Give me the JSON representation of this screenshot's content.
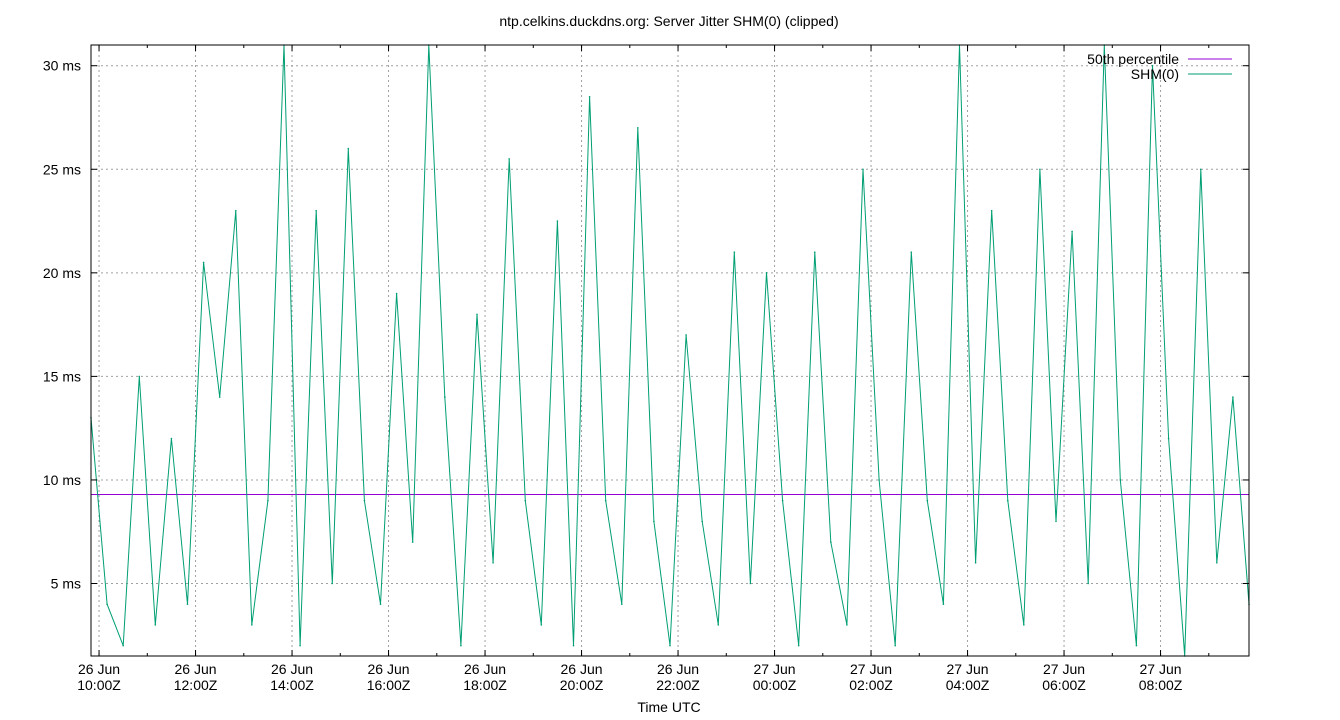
{
  "chart_data": {
    "type": "line",
    "title": "ntp.celkins.duckdns.org: Server Jitter SHM(0) (clipped)",
    "xlabel": "Time UTC",
    "ylabel": "",
    "y_unit": "ms",
    "ylim": [
      1.5,
      31
    ],
    "y_ticks": [
      5,
      10,
      15,
      20,
      25,
      30
    ],
    "y_tick_labels": [
      "5 ms",
      "10 ms",
      "15 ms",
      "20 ms",
      "25 ms",
      "30 ms"
    ],
    "x_range_utc": [
      "2024-06-26T09:50Z",
      "2024-06-27T09:50Z"
    ],
    "x_ticks": [
      {
        "day": "26 Jun",
        "time": "10:00Z",
        "t": "2024-06-26T10:00Z"
      },
      {
        "day": "26 Jun",
        "time": "12:00Z",
        "t": "2024-06-26T12:00Z"
      },
      {
        "day": "26 Jun",
        "time": "14:00Z",
        "t": "2024-06-26T14:00Z"
      },
      {
        "day": "26 Jun",
        "time": "16:00Z",
        "t": "2024-06-26T16:00Z"
      },
      {
        "day": "26 Jun",
        "time": "18:00Z",
        "t": "2024-06-26T18:00Z"
      },
      {
        "day": "26 Jun",
        "time": "20:00Z",
        "t": "2024-06-26T20:00Z"
      },
      {
        "day": "26 Jun",
        "time": "22:00Z",
        "t": "2024-06-26T22:00Z"
      },
      {
        "day": "27 Jun",
        "time": "00:00Z",
        "t": "2024-06-27T00:00Z"
      },
      {
        "day": "27 Jun",
        "time": "02:00Z",
        "t": "2024-06-27T02:00Z"
      },
      {
        "day": "27 Jun",
        "time": "04:00Z",
        "t": "2024-06-27T04:00Z"
      },
      {
        "day": "27 Jun",
        "time": "06:00Z",
        "t": "2024-06-27T06:00Z"
      },
      {
        "day": "27 Jun",
        "time": "08:00Z",
        "t": "2024-06-27T08:00Z"
      }
    ],
    "grid": true,
    "legend_position": "top-right",
    "series": [
      {
        "name": "50th percentile",
        "color": "#9400d3",
        "kind": "constant",
        "value": 9.3
      },
      {
        "name": "SHM(0)",
        "color": "#009e73",
        "kind": "line",
        "x": [
          "2024-06-26T09:50Z",
          "2024-06-26T10:10Z",
          "2024-06-26T10:30Z",
          "2024-06-26T10:50Z",
          "2024-06-26T11:10Z",
          "2024-06-26T11:30Z",
          "2024-06-26T11:50Z",
          "2024-06-26T12:10Z",
          "2024-06-26T12:30Z",
          "2024-06-26T12:50Z",
          "2024-06-26T13:10Z",
          "2024-06-26T13:30Z",
          "2024-06-26T13:50Z",
          "2024-06-26T14:10Z",
          "2024-06-26T14:30Z",
          "2024-06-26T14:50Z",
          "2024-06-26T15:10Z",
          "2024-06-26T15:30Z",
          "2024-06-26T15:50Z",
          "2024-06-26T16:10Z",
          "2024-06-26T16:30Z",
          "2024-06-26T16:50Z",
          "2024-06-26T17:10Z",
          "2024-06-26T17:30Z",
          "2024-06-26T17:50Z",
          "2024-06-26T18:10Z",
          "2024-06-26T18:30Z",
          "2024-06-26T18:50Z",
          "2024-06-26T19:10Z",
          "2024-06-26T19:30Z",
          "2024-06-26T19:50Z",
          "2024-06-26T20:10Z",
          "2024-06-26T20:30Z",
          "2024-06-26T20:50Z",
          "2024-06-26T21:10Z",
          "2024-06-26T21:30Z",
          "2024-06-26T21:50Z",
          "2024-06-26T22:10Z",
          "2024-06-26T22:30Z",
          "2024-06-26T22:50Z",
          "2024-06-26T23:10Z",
          "2024-06-26T23:30Z",
          "2024-06-26T23:50Z",
          "2024-06-27T00:10Z",
          "2024-06-27T00:30Z",
          "2024-06-27T00:50Z",
          "2024-06-27T01:10Z",
          "2024-06-27T01:30Z",
          "2024-06-27T01:50Z",
          "2024-06-27T02:10Z",
          "2024-06-27T02:30Z",
          "2024-06-27T02:50Z",
          "2024-06-27T03:10Z",
          "2024-06-27T03:30Z",
          "2024-06-27T03:50Z",
          "2024-06-27T04:10Z",
          "2024-06-27T04:30Z",
          "2024-06-27T04:50Z",
          "2024-06-27T05:10Z",
          "2024-06-27T05:30Z",
          "2024-06-27T05:50Z",
          "2024-06-27T06:10Z",
          "2024-06-27T06:30Z",
          "2024-06-27T06:50Z",
          "2024-06-27T07:10Z",
          "2024-06-27T07:30Z",
          "2024-06-27T07:50Z",
          "2024-06-27T08:10Z",
          "2024-06-27T08:30Z",
          "2024-06-27T08:50Z",
          "2024-06-27T09:10Z",
          "2024-06-27T09:30Z",
          "2024-06-27T09:50Z"
        ],
        "y": [
          13.0,
          4.0,
          2.0,
          15.0,
          3.0,
          12.0,
          4.0,
          20.5,
          14.0,
          23.0,
          3.0,
          9.0,
          31.0,
          2.0,
          23.0,
          5.0,
          26.0,
          9.0,
          4.0,
          19.0,
          7.0,
          31.0,
          14.0,
          2.0,
          18.0,
          6.0,
          25.5,
          9.0,
          3.0,
          22.5,
          2.0,
          28.5,
          9.0,
          4.0,
          27.0,
          8.0,
          2.0,
          17.0,
          8.0,
          3.0,
          21.0,
          5.0,
          20.0,
          9.0,
          2.0,
          21.0,
          7.0,
          3.0,
          25.0,
          10.0,
          2.0,
          21.0,
          9.0,
          4.0,
          31.0,
          6.0,
          23.0,
          9.0,
          3.0,
          25.0,
          8.0,
          22.0,
          5.0,
          31.0,
          10.0,
          2.0,
          30.0,
          12.0,
          1.5,
          25.0,
          6.0,
          14.0,
          4.0
        ]
      }
    ]
  }
}
